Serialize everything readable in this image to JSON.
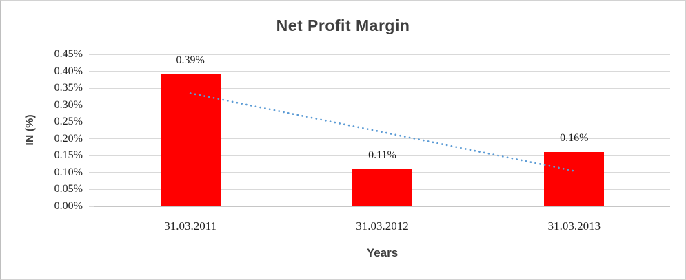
{
  "chart_data": {
    "type": "bar",
    "title": "Net Profit Margin",
    "xlabel": "Years",
    "ylabel": "IN (%)",
    "categories": [
      "31.03.2011",
      "31.03.2012",
      "31.03.2013"
    ],
    "series": [
      {
        "name": "Net Profit Margin",
        "values": [
          0.39,
          0.11,
          0.16
        ]
      }
    ],
    "data_labels": [
      "0.39%",
      "0.11%",
      "0.16%"
    ],
    "ylim": [
      0,
      0.45
    ],
    "ytick_step": 0.05,
    "ytick_labels": [
      "0.00%",
      "0.05%",
      "0.10%",
      "0.15%",
      "0.20%",
      "0.25%",
      "0.30%",
      "0.35%",
      "0.40%",
      "0.45%"
    ],
    "grid": true,
    "legend": "none",
    "bar_color": "#ff0000",
    "gridline_color": "#d9d9d9",
    "axis_line_color": "#c6c6c6",
    "text_color": "#1f1f1f",
    "title_color": "#3f3f3f",
    "trendline": {
      "type": "linear",
      "style": "dotted",
      "color": "#5b9bd5",
      "start_value": 0.335,
      "end_value": 0.105
    }
  }
}
